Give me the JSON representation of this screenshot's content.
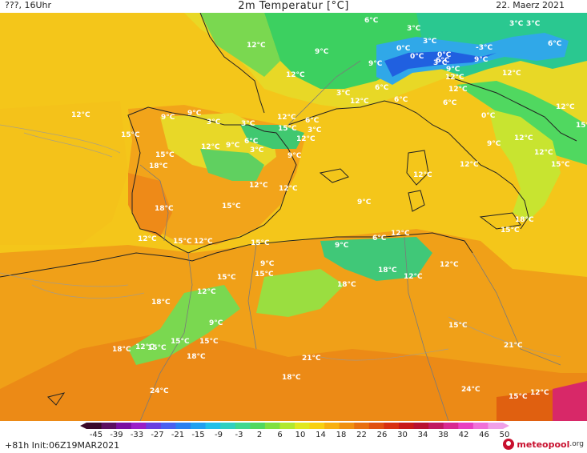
{
  "header": {
    "left": "???, 16Uhr",
    "title": "2m Temperatur [°C]",
    "date": "22. Maerz 2021"
  },
  "footer": {
    "run": "+81h  Init:06Z19MAR2021",
    "logo_text": "meteopool",
    "logo_tld": ".org"
  },
  "colorbar": {
    "ticks": [
      "-45",
      "-39",
      "-33",
      "-27",
      "-21",
      "-15",
      "-9",
      "-3",
      "2",
      "6",
      "10",
      "14",
      "18",
      "22",
      "26",
      "30",
      "34",
      "38",
      "42",
      "46",
      "50"
    ],
    "colors": [
      "#3a0a2a",
      "#5c1060",
      "#7a10a0",
      "#9a20c8",
      "#6a40e0",
      "#4a60f0",
      "#2a80f0",
      "#20a0f0",
      "#20c0e8",
      "#30d0c0",
      "#40d890",
      "#50d860",
      "#80e040",
      "#b0e830",
      "#e0e820",
      "#f8d010",
      "#f8b010",
      "#f09010",
      "#e87010",
      "#e05010",
      "#d83010",
      "#c81818",
      "#b81030",
      "#c01860",
      "#d82890",
      "#e840c0",
      "#f070d8",
      "#f0a0e8"
    ]
  },
  "temperature_labels": [
    "6°C",
    "3°C",
    "3°C",
    "0°C",
    "6°C",
    "12°C",
    "9°C",
    "9°C",
    "0°C",
    "0°C",
    "3°C",
    "3°C",
    "6°C",
    "-3°C",
    "9°C",
    "3°C",
    "9°C",
    "12°C",
    "12°C",
    "6°C",
    "3°C",
    "12°C",
    "6°C",
    "12°C",
    "6°C",
    "0°C",
    "12°C",
    "12°C",
    "12°C",
    "15°C",
    "9°C",
    "9°C",
    "3°C",
    "3°C",
    "12°C",
    "15°C",
    "6°C",
    "3°C",
    "12°C",
    "9°C",
    "3°C",
    "9°C",
    "15°C",
    "12°C",
    "6°C",
    "18°C",
    "12°C",
    "12°C",
    "9°C",
    "12°C",
    "12°C",
    "18°C",
    "15°C",
    "12°C",
    "9°C",
    "12°C",
    "15°C",
    "15°C",
    "18°C",
    "15°C",
    "6°C",
    "12°C",
    "9°C",
    "15°C",
    "12°C",
    "15°C",
    "12°C",
    "9°C",
    "15°C",
    "12°C",
    "18°C",
    "12°C",
    "15°C",
    "12°C",
    "18°C",
    "18°C",
    "9°C",
    "15°C",
    "15°C",
    "18°C",
    "12°C",
    "15°C",
    "18°C",
    "21°C",
    "15°C",
    "21°C",
    "18°C",
    "24°C",
    "24°C",
    "15°C",
    "12°C"
  ]
}
